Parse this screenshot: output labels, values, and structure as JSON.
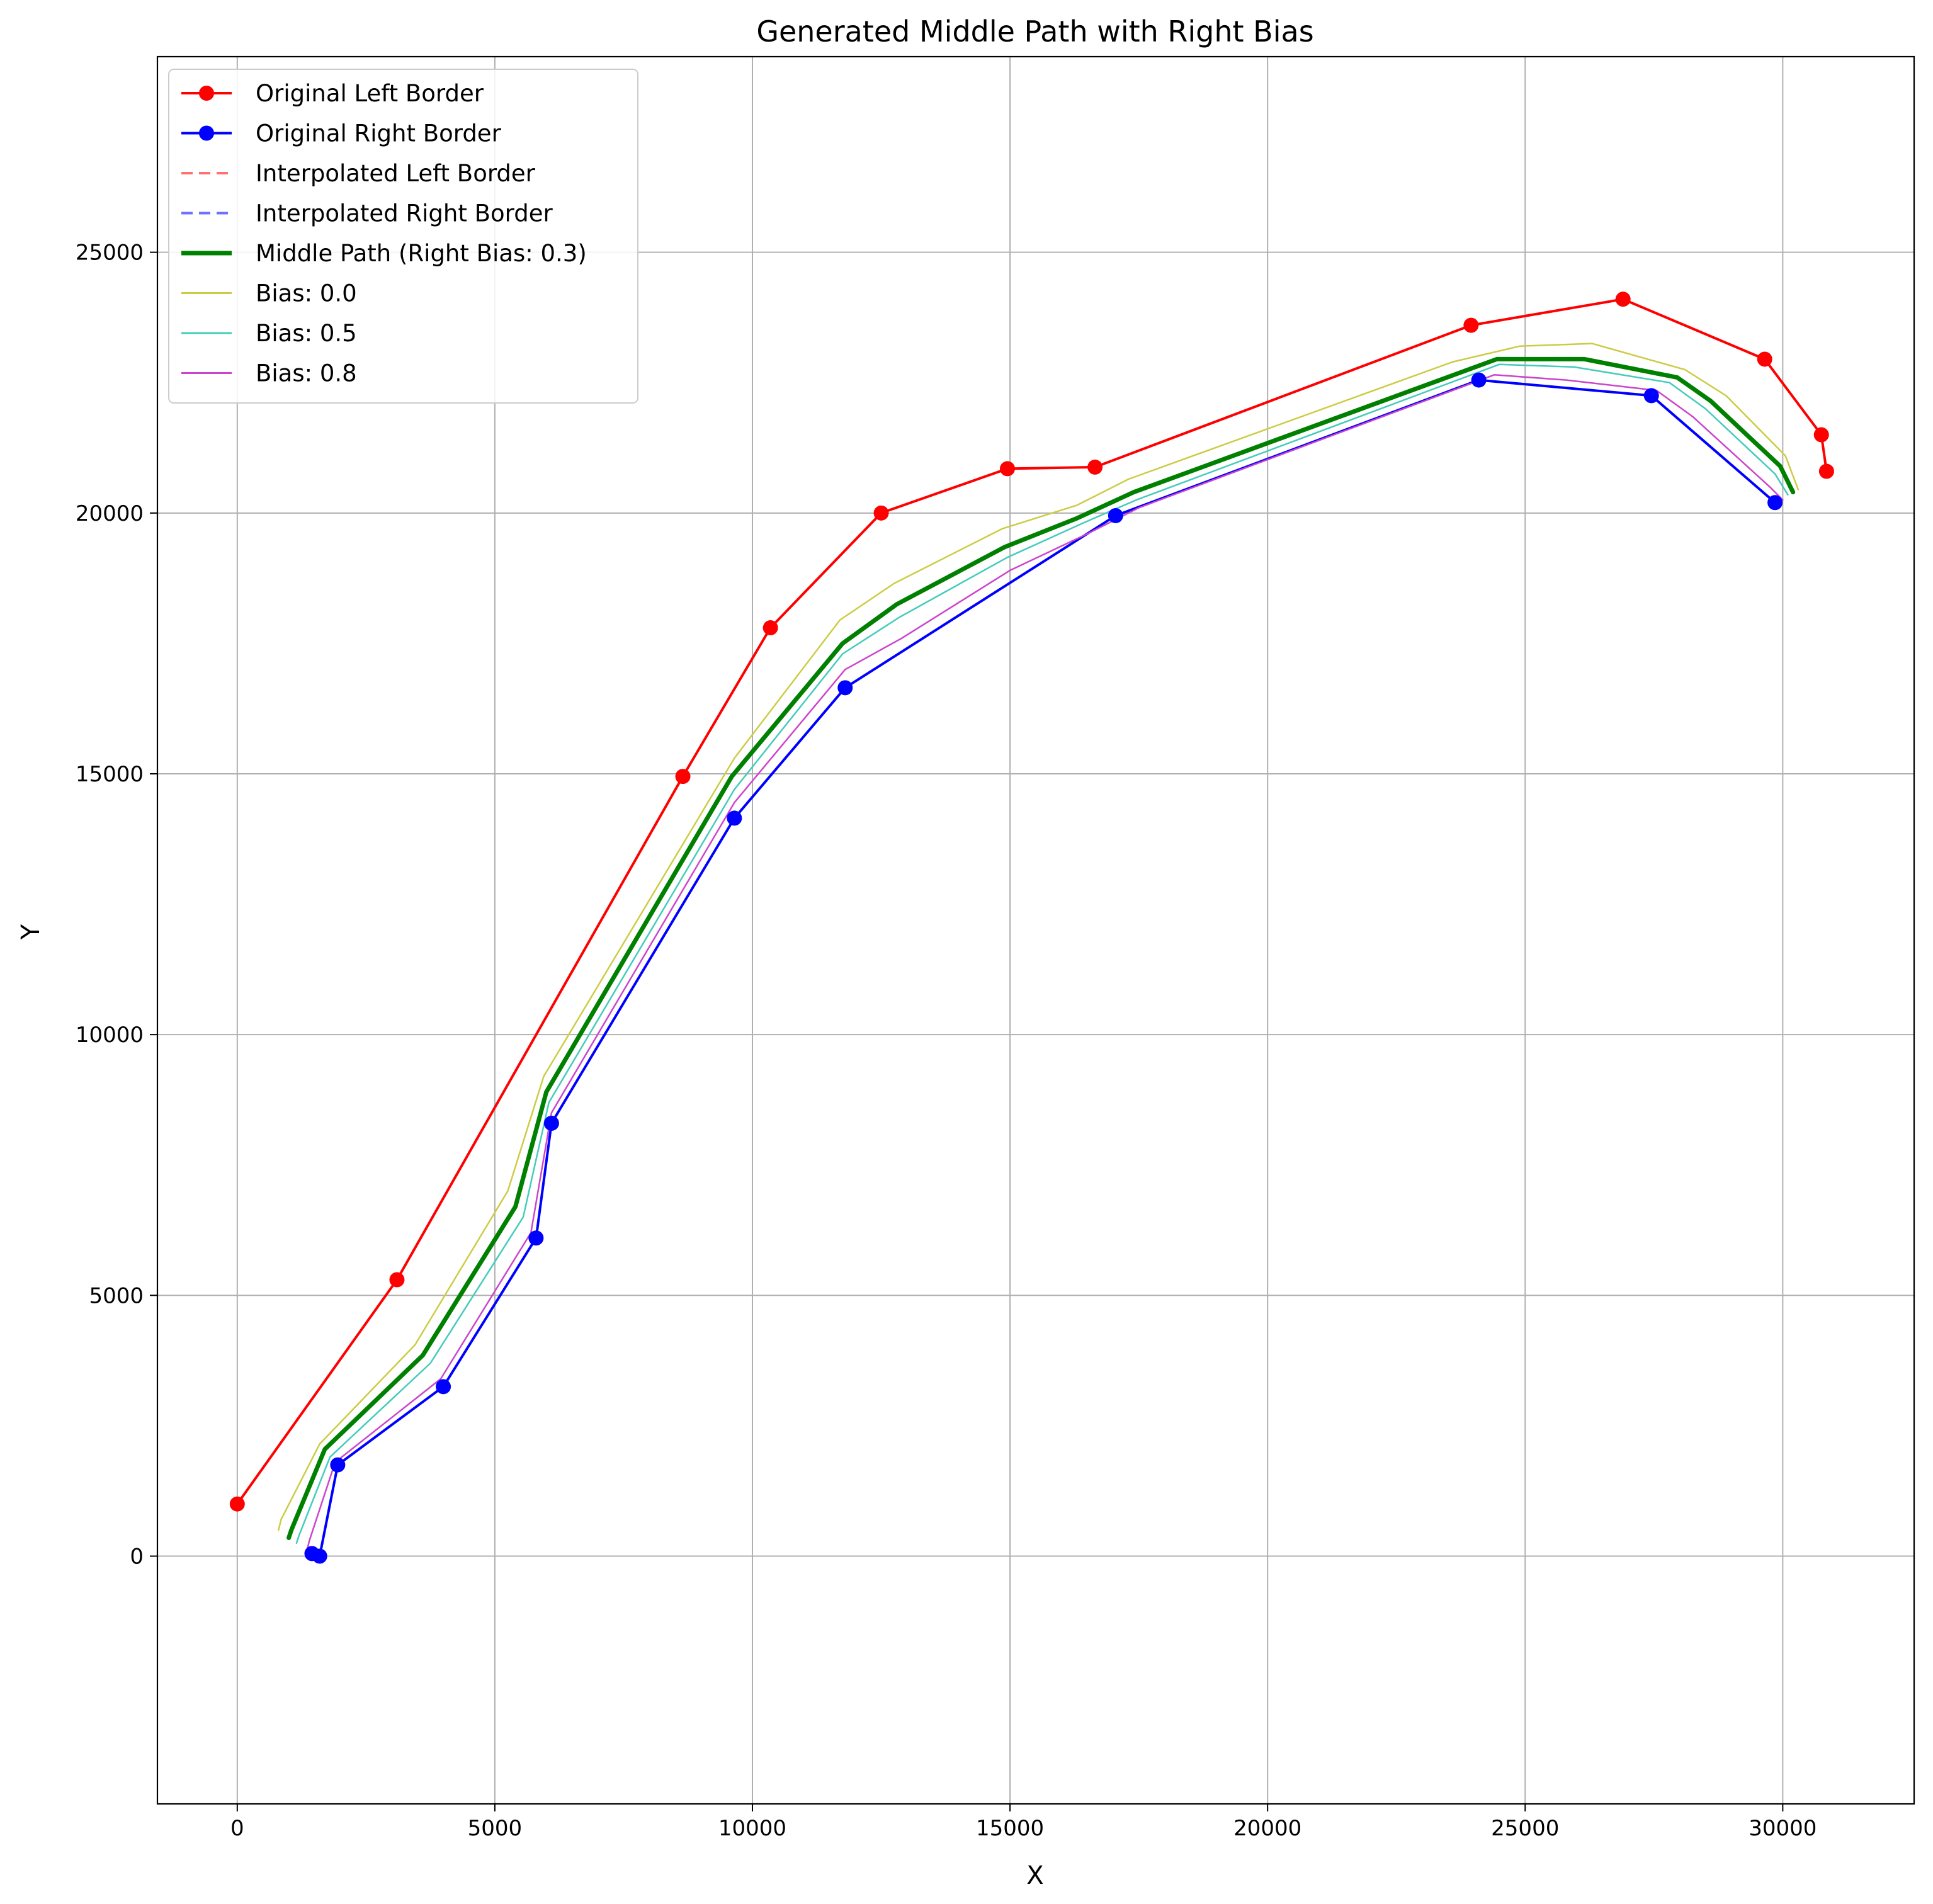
{
  "chart_data": {
    "type": "line",
    "title": "Generated Middle Path with Right Bias",
    "xlabel": "X",
    "ylabel": "Y",
    "xlim": [
      -1550,
      32550
    ],
    "ylim": [
      -4750,
      28750
    ],
    "xticks": [
      0,
      5000,
      10000,
      15000,
      20000,
      25000,
      30000
    ],
    "yticks": [
      0,
      5000,
      10000,
      15000,
      20000,
      25000
    ],
    "grid": true,
    "legend_position": "top-left",
    "series": [
      {
        "name": "Original Left Border",
        "color": "#ff0000",
        "style": "solid",
        "marker": true,
        "linewidth": 4,
        "points": [
          [
            0,
            1000
          ],
          [
            3100,
            5300
          ],
          [
            8650,
            14950
          ],
          [
            10350,
            17800
          ],
          [
            12500,
            20000
          ],
          [
            14950,
            20850
          ],
          [
            16650,
            20880
          ],
          [
            23950,
            23600
          ],
          [
            26900,
            24100
          ],
          [
            29650,
            22950
          ],
          [
            30750,
            21500
          ],
          [
            30850,
            20800
          ]
        ]
      },
      {
        "name": "Original Right Border",
        "color": "#0000ff",
        "style": "solid",
        "marker": true,
        "linewidth": 4,
        "points": [
          [
            1450,
            50
          ],
          [
            1600,
            0
          ],
          [
            1950,
            1750
          ],
          [
            4000,
            3250
          ],
          [
            5800,
            6100
          ],
          [
            6100,
            8300
          ],
          [
            9650,
            14150
          ],
          [
            11800,
            16650
          ],
          [
            17050,
            19950
          ],
          [
            24100,
            22550
          ],
          [
            27450,
            22250
          ],
          [
            29850,
            20200
          ]
        ]
      },
      {
        "name": "Interpolated Left Border",
        "color": "#ff7070",
        "style": "dashed",
        "marker": false,
        "linewidth": 4,
        "points": [
          [
            0,
            1000
          ],
          [
            3100,
            5300
          ],
          [
            8650,
            14950
          ],
          [
            10350,
            17800
          ],
          [
            12500,
            20000
          ],
          [
            14950,
            20850
          ],
          [
            16650,
            20880
          ],
          [
            23950,
            23600
          ],
          [
            26900,
            24100
          ],
          [
            29650,
            22950
          ],
          [
            30750,
            21500
          ],
          [
            30850,
            20800
          ]
        ]
      },
      {
        "name": "Interpolated Right Border",
        "color": "#7070ff",
        "style": "dashed",
        "marker": false,
        "linewidth": 4,
        "points": [
          [
            1450,
            50
          ],
          [
            1600,
            0
          ],
          [
            1950,
            1750
          ],
          [
            4000,
            3250
          ],
          [
            5800,
            6100
          ],
          [
            6100,
            8300
          ],
          [
            9650,
            14150
          ],
          [
            11800,
            16650
          ],
          [
            17050,
            19950
          ],
          [
            24100,
            22550
          ],
          [
            27450,
            22250
          ],
          [
            29850,
            20200
          ]
        ]
      },
      {
        "name": "Middle Path (Right Bias: 0.3)",
        "color": "#008000",
        "style": "solid",
        "marker": false,
        "linewidth": 7,
        "points": [
          [
            1000,
            350
          ],
          [
            1050,
            500
          ],
          [
            1700,
            2050
          ],
          [
            3600,
            3850
          ],
          [
            5400,
            6700
          ],
          [
            6000,
            8900
          ],
          [
            9600,
            14950
          ],
          [
            11750,
            17500
          ],
          [
            12800,
            18250
          ],
          [
            14900,
            19350
          ],
          [
            16300,
            19900
          ],
          [
            17400,
            20400
          ],
          [
            24450,
            22950
          ],
          [
            26150,
            22950
          ],
          [
            27950,
            22600
          ],
          [
            28600,
            22150
          ],
          [
            29950,
            20900
          ],
          [
            30200,
            20400
          ]
        ]
      },
      {
        "name": "Bias: 0.0",
        "color": "#cccc44",
        "style": "solid",
        "marker": false,
        "linewidth": 2.5,
        "points": [
          [
            800,
            500
          ],
          [
            850,
            700
          ],
          [
            1600,
            2150
          ],
          [
            3450,
            4050
          ],
          [
            5250,
            7000
          ],
          [
            5950,
            9200
          ],
          [
            9650,
            15300
          ],
          [
            11700,
            17950
          ],
          [
            12750,
            18650
          ],
          [
            14850,
            19700
          ],
          [
            16300,
            20150
          ],
          [
            17300,
            20650
          ],
          [
            23600,
            22900
          ],
          [
            24900,
            23200
          ],
          [
            26300,
            23250
          ],
          [
            28100,
            22750
          ],
          [
            28900,
            22250
          ],
          [
            30050,
            21100
          ],
          [
            30300,
            20450
          ]
        ]
      },
      {
        "name": "Bias: 0.5",
        "color": "#44ccbb",
        "style": "solid",
        "marker": false,
        "linewidth": 2.5,
        "points": [
          [
            1150,
            250
          ],
          [
            1200,
            400
          ],
          [
            1800,
            1900
          ],
          [
            3750,
            3700
          ],
          [
            5550,
            6500
          ],
          [
            6050,
            8700
          ],
          [
            9650,
            14700
          ],
          [
            11750,
            17300
          ],
          [
            12850,
            18000
          ],
          [
            14950,
            19150
          ],
          [
            16400,
            19800
          ],
          [
            17450,
            20250
          ],
          [
            24500,
            22850
          ],
          [
            25950,
            22800
          ],
          [
            27800,
            22500
          ],
          [
            28500,
            22000
          ],
          [
            29850,
            20750
          ],
          [
            30100,
            20350
          ]
        ]
      },
      {
        "name": "Bias: 0.8",
        "color": "#cc44cc",
        "style": "solid",
        "marker": false,
        "linewidth": 2.5,
        "points": [
          [
            1350,
            100
          ],
          [
            1400,
            300
          ],
          [
            1900,
            1800
          ],
          [
            3950,
            3400
          ],
          [
            5700,
            6200
          ],
          [
            6100,
            8500
          ],
          [
            9650,
            14450
          ],
          [
            11800,
            17000
          ],
          [
            12900,
            17600
          ],
          [
            15000,
            18900
          ],
          [
            16500,
            19600
          ],
          [
            17500,
            20100
          ],
          [
            24400,
            22650
          ],
          [
            25800,
            22550
          ],
          [
            27550,
            22350
          ],
          [
            28250,
            21850
          ],
          [
            29750,
            20500
          ],
          [
            30000,
            20250
          ]
        ]
      }
    ]
  }
}
